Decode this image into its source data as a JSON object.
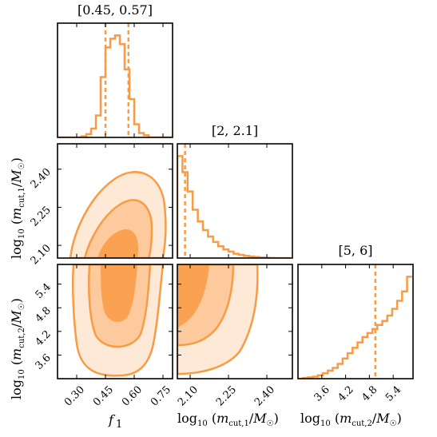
{
  "chart_data": {
    "type": "corner",
    "color": "#f99b45",
    "params": [
      {
        "label": "f_1",
        "range": [
          0.2,
          0.8
        ]
      },
      {
        "label": "log10(m_cut,1/M_sun)",
        "range": [
          2.05,
          2.5
        ]
      },
      {
        "label": "log10(m_cut,2/M_sun)",
        "range": [
          3.0,
          5.9
        ]
      }
    ],
    "diag_titles": [
      "[0.45, 0.57]",
      "[2, 2.1]",
      "[5, 6]"
    ],
    "quantile_lines": [
      [
        0.45,
        0.57
      ],
      [
        2.08
      ],
      [
        4.95
      ]
    ],
    "hist_f1": {
      "edges": [
        0.2,
        0.225,
        0.25,
        0.275,
        0.3,
        0.325,
        0.35,
        0.375,
        0.4,
        0.425,
        0.45,
        0.475,
        0.5,
        0.525,
        0.55,
        0.575,
        0.6,
        0.625,
        0.65,
        0.675,
        0.7,
        0.725,
        0.75,
        0.775,
        0.8
      ],
      "counts": [
        0,
        0,
        0,
        0,
        0,
        1,
        3,
        8,
        20,
        55,
        82,
        90,
        93,
        85,
        62,
        35,
        12,
        4,
        2,
        0,
        0,
        0,
        0,
        0
      ]
    },
    "hist_mcut1": {
      "edges": [
        2.05,
        2.07,
        2.09,
        2.11,
        2.13,
        2.15,
        2.17,
        2.19,
        2.21,
        2.23,
        2.25,
        2.27,
        2.29,
        2.31,
        2.33,
        2.35,
        2.37,
        2.39,
        2.41,
        2.43,
        2.45,
        2.47,
        2.49
      ],
      "counts": [
        95,
        80,
        62,
        45,
        34,
        26,
        20,
        15,
        11,
        8,
        6,
        4,
        3,
        2,
        1.5,
        1,
        0.6,
        0.3,
        0.1,
        0,
        0,
        0
      ]
    },
    "hist_mcut2": {
      "edges": [
        3.0,
        3.125,
        3.25,
        3.375,
        3.5,
        3.625,
        3.75,
        3.875,
        4.0,
        4.125,
        4.25,
        4.375,
        4.5,
        4.625,
        4.75,
        4.875,
        5.0,
        5.125,
        5.25,
        5.375,
        5.5,
        5.625,
        5.75,
        5.875
      ],
      "counts": [
        0,
        0.5,
        1,
        1.5,
        2.5,
        4,
        6,
        8,
        11,
        15,
        19,
        23,
        27,
        31,
        34,
        37,
        40,
        43,
        47,
        52,
        58,
        65,
        76
      ]
    },
    "ticks": {
      "f1": [
        {
          "v": 0.3,
          "t": "0.30"
        },
        {
          "v": 0.45,
          "t": "0.45"
        },
        {
          "v": 0.6,
          "t": "0.60"
        },
        {
          "v": 0.75,
          "t": "0.75"
        }
      ],
      "mcut1": [
        {
          "v": 2.1,
          "t": "2.10"
        },
        {
          "v": 2.25,
          "t": "2.25"
        },
        {
          "v": 2.4,
          "t": "2.40"
        }
      ],
      "mcut2": [
        {
          "v": 3.6,
          "t": "3.6"
        },
        {
          "v": 4.2,
          "t": "4.2"
        },
        {
          "v": 4.8,
          "t": "4.8"
        },
        {
          "v": 5.4,
          "t": "5.4"
        }
      ]
    },
    "axis_labels": {
      "x_f1": "f",
      "x_f1_sub": "1",
      "x_mcut1": "log",
      "x_mcut1_rest": "(m",
      "x_mcut2": "log",
      "y_mcut1": "log",
      "y_mcut2": "log"
    }
  }
}
